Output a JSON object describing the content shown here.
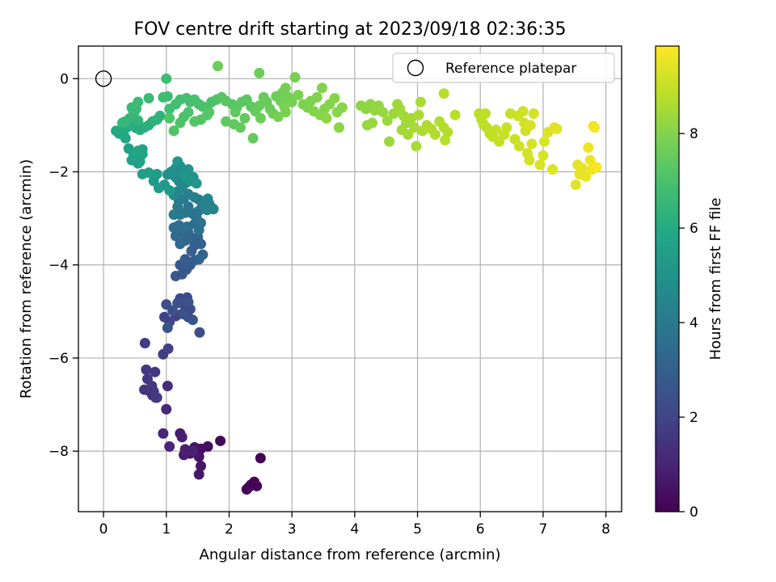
{
  "chart_data": {
    "type": "scatter",
    "title": "FOV centre drift starting at 2023/09/18 02:36:35",
    "xlabel": "Angular distance from reference (arcmin)",
    "ylabel": "Rotation from reference (arcmin)",
    "xlim": [
      -0.4,
      8.25
    ],
    "ylim": [
      -9.3,
      0.7
    ],
    "xticks": [
      "0",
      "1",
      "2",
      "3",
      "4",
      "5",
      "6",
      "7",
      "8"
    ],
    "yticks": [
      "0",
      "−2",
      "−4",
      "−6",
      "−8"
    ],
    "grid": true,
    "legend": {
      "label": "Reference platepar",
      "position": "top-right"
    },
    "reference_point": {
      "x": 0,
      "y": 0
    },
    "colorbar": {
      "label": "Hours from first FF file",
      "min": 0,
      "max": 9.85,
      "ticks": [
        "0",
        "2",
        "4",
        "6",
        "8"
      ],
      "colormap": "viridis"
    },
    "points": [
      [
        2.5,
        -8.15,
        0.02
      ],
      [
        2.28,
        -8.82,
        0.06
      ],
      [
        2.31,
        -8.78,
        0.08
      ],
      [
        2.4,
        -8.66,
        0.1
      ],
      [
        2.44,
        -8.75,
        0.12
      ],
      [
        2.35,
        -8.72,
        0.15
      ],
      [
        1.86,
        -7.78,
        0.22
      ],
      [
        1.66,
        -7.9,
        0.3
      ],
      [
        1.55,
        -7.95,
        0.38
      ],
      [
        1.45,
        -7.92,
        0.44
      ],
      [
        1.38,
        -8.05,
        0.5
      ],
      [
        1.52,
        -8.12,
        0.55
      ],
      [
        1.55,
        -8.32,
        0.6
      ],
      [
        1.52,
        -8.5,
        0.65
      ],
      [
        1.22,
        -7.62,
        0.75
      ],
      [
        1.28,
        -8.08,
        0.8
      ],
      [
        1.25,
        -7.7,
        0.85
      ],
      [
        1.3,
        -7.96,
        0.9
      ],
      [
        1.42,
        -8.0,
        0.95
      ],
      [
        1.05,
        -7.9,
        1.02
      ],
      [
        0.95,
        -7.62,
        1.08
      ],
      [
        1.0,
        -7.1,
        1.15
      ],
      [
        1.02,
        -6.6,
        1.22
      ],
      [
        0.85,
        -6.85,
        1.3
      ],
      [
        0.78,
        -6.8,
        1.35
      ],
      [
        0.72,
        -6.7,
        1.4
      ],
      [
        0.65,
        -6.68,
        1.45
      ],
      [
        0.8,
        -6.72,
        1.5
      ],
      [
        0.7,
        -6.45,
        1.55
      ],
      [
        0.68,
        -6.25,
        1.6
      ],
      [
        0.82,
        -6.3,
        1.62
      ],
      [
        0.77,
        -6.6,
        1.66
      ],
      [
        0.83,
        -6.85,
        1.7
      ],
      [
        0.66,
        -5.68,
        1.75
      ],
      [
        0.95,
        -5.92,
        1.8
      ],
      [
        1.03,
        -5.8,
        1.86
      ],
      [
        0.97,
        -5.12,
        1.92
      ],
      [
        1.05,
        -5.22,
        1.96
      ],
      [
        1.15,
        -5.1,
        2.0
      ],
      [
        1.25,
        -5.05,
        2.05
      ],
      [
        1.22,
        -4.72,
        2.1
      ],
      [
        1.3,
        -4.88,
        2.15
      ],
      [
        1.33,
        -4.7,
        2.2
      ],
      [
        1.38,
        -4.95,
        2.25
      ],
      [
        1.35,
        -5.12,
        2.28
      ],
      [
        1.53,
        -5.45,
        2.32
      ],
      [
        1.0,
        -4.85,
        2.36
      ],
      [
        1.1,
        -4.98,
        2.4
      ],
      [
        1.18,
        -4.82,
        2.44
      ],
      [
        1.35,
        -4.8,
        2.48
      ],
      [
        1.28,
        -5.06,
        2.52
      ],
      [
        1.02,
        -5.35,
        2.56
      ],
      [
        1.42,
        -5.18,
        2.6
      ],
      [
        1.15,
        -4.24,
        2.66
      ],
      [
        1.25,
        -4.2,
        2.7
      ],
      [
        1.32,
        -4.1,
        2.74
      ],
      [
        1.22,
        -4.0,
        2.78
      ],
      [
        1.3,
        -3.88,
        2.82
      ],
      [
        1.38,
        -4.0,
        2.86
      ],
      [
        1.45,
        -3.9,
        2.9
      ],
      [
        1.4,
        -3.7,
        2.94
      ],
      [
        1.45,
        -3.58,
        2.98
      ],
      [
        1.55,
        -3.55,
        3.02
      ],
      [
        1.5,
        -3.4,
        3.06
      ],
      [
        1.58,
        -3.78,
        3.1
      ],
      [
        1.52,
        -3.88,
        3.14
      ],
      [
        1.35,
        -3.3,
        3.18
      ],
      [
        1.4,
        -3.42,
        3.22
      ],
      [
        1.3,
        -3.48,
        3.26
      ],
      [
        1.22,
        -3.55,
        3.3
      ],
      [
        1.25,
        -3.3,
        3.34
      ],
      [
        1.15,
        -3.38,
        3.38
      ],
      [
        1.12,
        -3.2,
        3.42
      ],
      [
        1.2,
        -3.15,
        3.46
      ],
      [
        1.28,
        -3.22,
        3.5
      ],
      [
        1.33,
        -3.18,
        3.54
      ],
      [
        1.45,
        -3.12,
        3.58
      ],
      [
        1.52,
        -3.25,
        3.62
      ],
      [
        1.55,
        -3.1,
        3.66
      ],
      [
        1.48,
        -2.98,
        3.7
      ],
      [
        1.42,
        -2.9,
        3.74
      ],
      [
        1.5,
        -2.86,
        3.78
      ],
      [
        1.55,
        -2.8,
        3.82
      ],
      [
        1.35,
        -2.75,
        3.86
      ],
      [
        1.3,
        -2.88,
        3.9
      ],
      [
        1.22,
        -2.92,
        3.94
      ],
      [
        1.18,
        -2.75,
        3.98
      ],
      [
        1.12,
        -2.92,
        4.02
      ],
      [
        1.2,
        -2.62,
        4.06
      ],
      [
        1.28,
        -2.58,
        4.1
      ],
      [
        1.35,
        -2.48,
        4.14
      ],
      [
        1.45,
        -2.55,
        4.18
      ],
      [
        1.52,
        -2.6,
        4.22
      ],
      [
        1.6,
        -2.74,
        4.26
      ],
      [
        1.65,
        -2.82,
        4.3
      ],
      [
        1.72,
        -2.77,
        4.34
      ],
      [
        1.68,
        -2.68,
        4.38
      ],
      [
        1.75,
        -2.8,
        4.42
      ],
      [
        1.66,
        -2.58,
        4.46
      ],
      [
        1.25,
        -2.35,
        4.5
      ],
      [
        1.3,
        -2.25,
        4.54
      ],
      [
        1.18,
        -2.42,
        4.58
      ],
      [
        1.12,
        -2.5,
        4.62
      ],
      [
        1.2,
        -2.2,
        4.66
      ],
      [
        1.25,
        -2.1,
        4.7
      ],
      [
        1.15,
        -2.12,
        4.74
      ],
      [
        1.08,
        -2.0,
        4.78
      ],
      [
        1.02,
        -2.06,
        4.82
      ],
      [
        1.15,
        -1.92,
        4.86
      ],
      [
        1.22,
        -1.88,
        4.9
      ],
      [
        1.28,
        -2.0,
        4.94
      ],
      [
        1.35,
        -1.95,
        4.98
      ],
      [
        1.43,
        -2.12,
        5.02
      ],
      [
        1.48,
        -2.25,
        5.06
      ],
      [
        1.38,
        -2.2,
        5.1
      ],
      [
        1.3,
        -2.1,
        5.14
      ],
      [
        1.18,
        -1.78,
        5.18
      ],
      [
        0.97,
        -2.28,
        5.22
      ],
      [
        1.05,
        -2.4,
        5.26
      ],
      [
        0.88,
        -2.35,
        5.3
      ],
      [
        0.8,
        -2.2,
        5.34
      ],
      [
        0.85,
        -2.05,
        5.38
      ],
      [
        0.72,
        -2.02,
        5.42
      ],
      [
        0.62,
        -2.05,
        5.46
      ],
      [
        0.55,
        -1.82,
        5.5
      ],
      [
        0.45,
        -1.75,
        5.54
      ],
      [
        0.4,
        -1.5,
        5.58
      ],
      [
        0.62,
        -1.52,
        5.62
      ],
      [
        0.58,
        -1.78,
        5.66
      ],
      [
        0.48,
        -1.62,
        5.7
      ],
      [
        0.55,
        -1.55,
        5.74
      ],
      [
        0.62,
        -1.62,
        5.78
      ],
      [
        0.35,
        -1.28,
        5.82
      ],
      [
        0.32,
        -1.2,
        5.86
      ],
      [
        0.25,
        -1.18,
        5.9
      ],
      [
        0.2,
        -1.12,
        5.94
      ],
      [
        0.3,
        -1.08,
        5.98
      ],
      [
        0.38,
        -1.04,
        6.02
      ],
      [
        0.45,
        -1.0,
        6.06
      ],
      [
        0.52,
        -1.06,
        6.1
      ],
      [
        0.58,
        -1.1,
        6.14
      ],
      [
        0.65,
        -1.05,
        6.18
      ],
      [
        0.72,
        -1.0,
        6.22
      ],
      [
        0.78,
        -0.92,
        6.26
      ],
      [
        0.85,
        -0.88,
        6.3
      ],
      [
        0.9,
        -0.8,
        6.34
      ],
      [
        0.55,
        -0.9,
        6.38
      ],
      [
        0.42,
        -0.85,
        6.42
      ],
      [
        0.35,
        -0.92,
        6.46
      ],
      [
        0.3,
        -0.95,
        6.5
      ],
      [
        0.48,
        -0.75,
        6.54
      ],
      [
        0.52,
        -0.65,
        6.58
      ],
      [
        0.45,
        -0.62,
        6.62
      ],
      [
        0.55,
        -0.5,
        6.66
      ],
      [
        0.72,
        -0.42,
        6.7
      ],
      [
        0.95,
        -0.4,
        6.74
      ],
      [
        1.02,
        -0.38,
        6.78
      ],
      [
        1.0,
        0.0,
        6.82
      ],
      [
        1.05,
        -0.65,
        6.84
      ],
      [
        1.15,
        -0.55,
        6.86
      ],
      [
        1.22,
        -0.45,
        6.88
      ],
      [
        1.32,
        -0.42,
        6.9
      ],
      [
        1.38,
        -0.5,
        6.92
      ],
      [
        1.45,
        -0.45,
        6.94
      ],
      [
        1.52,
        -0.55,
        6.96
      ],
      [
        1.58,
        -0.6,
        6.98
      ],
      [
        1.65,
        -0.62,
        7.0
      ],
      [
        1.72,
        -0.5,
        7.02
      ],
      [
        1.8,
        -0.45,
        7.04
      ],
      [
        1.35,
        -0.72,
        7.06
      ],
      [
        1.28,
        -0.82,
        7.08
      ],
      [
        1.22,
        -0.95,
        7.1
      ],
      [
        1.12,
        -1.12,
        7.12
      ],
      [
        1.05,
        -0.85,
        7.14
      ],
      [
        1.45,
        -0.92,
        7.16
      ],
      [
        1.55,
        -0.88,
        7.18
      ],
      [
        1.65,
        -0.78,
        7.2
      ],
      [
        1.68,
        -0.72,
        7.22
      ],
      [
        1.88,
        -0.4,
        7.24
      ],
      [
        1.95,
        -0.48,
        7.26
      ],
      [
        2.05,
        -0.55,
        7.28
      ],
      [
        2.12,
        -0.62,
        7.3
      ],
      [
        2.2,
        -0.5,
        7.32
      ],
      [
        2.28,
        -0.45,
        7.34
      ],
      [
        2.35,
        -0.6,
        7.36
      ],
      [
        2.1,
        -0.72,
        7.38
      ],
      [
        1.95,
        -0.92,
        7.4
      ],
      [
        2.08,
        -0.98,
        7.42
      ],
      [
        2.18,
        -1.05,
        7.44
      ],
      [
        2.25,
        -0.85,
        7.46
      ],
      [
        2.38,
        -1.28,
        7.48
      ],
      [
        2.42,
        -0.7,
        7.5
      ],
      [
        2.48,
        -0.58,
        7.52
      ],
      [
        2.55,
        -0.4,
        7.54
      ],
      [
        2.6,
        -0.5,
        7.56
      ],
      [
        2.65,
        -0.65,
        7.58
      ],
      [
        2.7,
        -0.75,
        7.6
      ],
      [
        2.5,
        -0.85,
        7.62
      ],
      [
        2.48,
        0.12,
        7.64
      ],
      [
        1.82,
        0.27,
        7.66
      ],
      [
        2.75,
        -0.38,
        7.68
      ],
      [
        2.82,
        -0.48,
        7.7
      ],
      [
        2.85,
        -0.3,
        7.72
      ],
      [
        2.9,
        -0.2,
        7.74
      ],
      [
        2.95,
        -0.4,
        7.76
      ],
      [
        3.0,
        -0.5,
        7.78
      ],
      [
        2.9,
        -0.72,
        7.8
      ],
      [
        2.78,
        -0.82,
        7.82
      ],
      [
        3.05,
        0.03,
        7.84
      ],
      [
        2.88,
        -0.6,
        7.86
      ],
      [
        3.1,
        -0.35,
        7.88
      ],
      [
        3.18,
        -0.55,
        7.9
      ],
      [
        3.25,
        -0.62,
        7.92
      ],
      [
        3.3,
        -0.48,
        7.94
      ],
      [
        3.4,
        -0.4,
        7.96
      ],
      [
        3.48,
        -0.2,
        7.98
      ],
      [
        3.35,
        -0.7,
        8.0
      ],
      [
        3.45,
        -0.78,
        8.02
      ],
      [
        3.52,
        -0.65,
        8.04
      ],
      [
        3.6,
        -0.55,
        8.06
      ],
      [
        3.68,
        -0.42,
        8.08
      ],
      [
        3.72,
        -0.72,
        8.1
      ],
      [
        3.8,
        -0.62,
        8.12
      ],
      [
        3.75,
        -1.05,
        8.14
      ],
      [
        3.55,
        -0.85,
        8.16
      ],
      [
        4.1,
        -0.58,
        8.18
      ],
      [
        4.18,
        -0.65,
        8.2
      ],
      [
        4.25,
        -0.55,
        8.22
      ],
      [
        4.32,
        -0.68,
        8.24
      ],
      [
        4.38,
        -0.58,
        8.26
      ],
      [
        4.45,
        -0.72,
        8.28
      ],
      [
        4.2,
        -1.0,
        8.3
      ],
      [
        4.28,
        -0.95,
        8.32
      ],
      [
        4.52,
        -0.9,
        8.34
      ],
      [
        4.55,
        -1.35,
        8.36
      ],
      [
        4.62,
        -0.75,
        8.38
      ],
      [
        4.68,
        -0.55,
        8.4
      ],
      [
        4.72,
        -0.65,
        8.42
      ],
      [
        4.78,
        -0.8,
        8.44
      ],
      [
        4.82,
        -0.95,
        8.46
      ],
      [
        4.75,
        -1.1,
        8.48
      ],
      [
        4.85,
        -1.2,
        8.5
      ],
      [
        4.9,
        -0.85,
        8.52
      ],
      [
        4.95,
        -1.05,
        8.54
      ],
      [
        4.98,
        -1.45,
        8.56
      ],
      [
        5.05,
        -0.5,
        8.58
      ],
      [
        5.02,
        -0.78,
        8.6
      ],
      [
        5.08,
        -1.12,
        8.62
      ],
      [
        5.15,
        -1.0,
        8.64
      ],
      [
        5.22,
        -1.08,
        8.66
      ],
      [
        5.28,
        -1.2,
        8.68
      ],
      [
        5.35,
        -0.92,
        8.7
      ],
      [
        5.42,
        -1.05,
        8.72
      ],
      [
        5.48,
        -1.15,
        8.74
      ],
      [
        5.44,
        -1.32,
        8.76
      ],
      [
        5.42,
        -0.32,
        8.78
      ],
      [
        5.6,
        -0.78,
        8.8
      ],
      [
        5.98,
        -0.75,
        8.82
      ],
      [
        6.02,
        -0.88,
        8.84
      ],
      [
        6.05,
        -0.98,
        8.86
      ],
      [
        6.1,
        -1.05,
        8.88
      ],
      [
        6.08,
        -0.75,
        8.9
      ],
      [
        6.15,
        -1.18,
        8.92
      ],
      [
        6.2,
        -1.25,
        8.94
      ],
      [
        6.25,
        -1.1,
        8.96
      ],
      [
        6.3,
        -1.35,
        8.98
      ],
      [
        6.38,
        -1.2,
        9.0
      ],
      [
        6.42,
        -1.05,
        9.02
      ],
      [
        6.48,
        -0.75,
        9.04
      ],
      [
        6.55,
        -1.3,
        9.06
      ],
      [
        6.6,
        -0.8,
        9.08
      ],
      [
        6.62,
        -1.45,
        9.1
      ],
      [
        6.68,
        -0.7,
        9.12
      ],
      [
        6.7,
        -0.95,
        9.14
      ],
      [
        6.72,
        -1.12,
        9.16
      ],
      [
        6.75,
        -1.6,
        9.18
      ],
      [
        6.78,
        -1.75,
        9.2
      ],
      [
        6.82,
        -1.4,
        9.22
      ],
      [
        6.85,
        -0.75,
        9.24
      ],
      [
        6.8,
        -1.0,
        9.26
      ],
      [
        6.95,
        -1.85,
        9.28
      ],
      [
        7.0,
        -1.65,
        9.3
      ],
      [
        7.02,
        -1.35,
        9.32
      ],
      [
        7.08,
        -1.15,
        9.34
      ],
      [
        7.15,
        -1.95,
        9.36
      ],
      [
        7.18,
        -1.05,
        9.38
      ],
      [
        7.22,
        -1.08,
        9.4
      ],
      [
        7.52,
        -2.28,
        9.42
      ],
      [
        7.55,
        -1.85,
        9.45
      ],
      [
        7.58,
        -2.05,
        9.48
      ],
      [
        7.62,
        -1.92,
        9.51
      ],
      [
        7.68,
        -2.1,
        9.54
      ],
      [
        7.72,
        -1.48,
        9.57
      ],
      [
        7.75,
        -1.75,
        9.6
      ],
      [
        7.78,
        -1.95,
        9.63
      ],
      [
        7.8,
        -1.02,
        9.66
      ],
      [
        7.82,
        -1.05,
        9.7
      ],
      [
        7.85,
        -1.9,
        9.78
      ]
    ]
  }
}
